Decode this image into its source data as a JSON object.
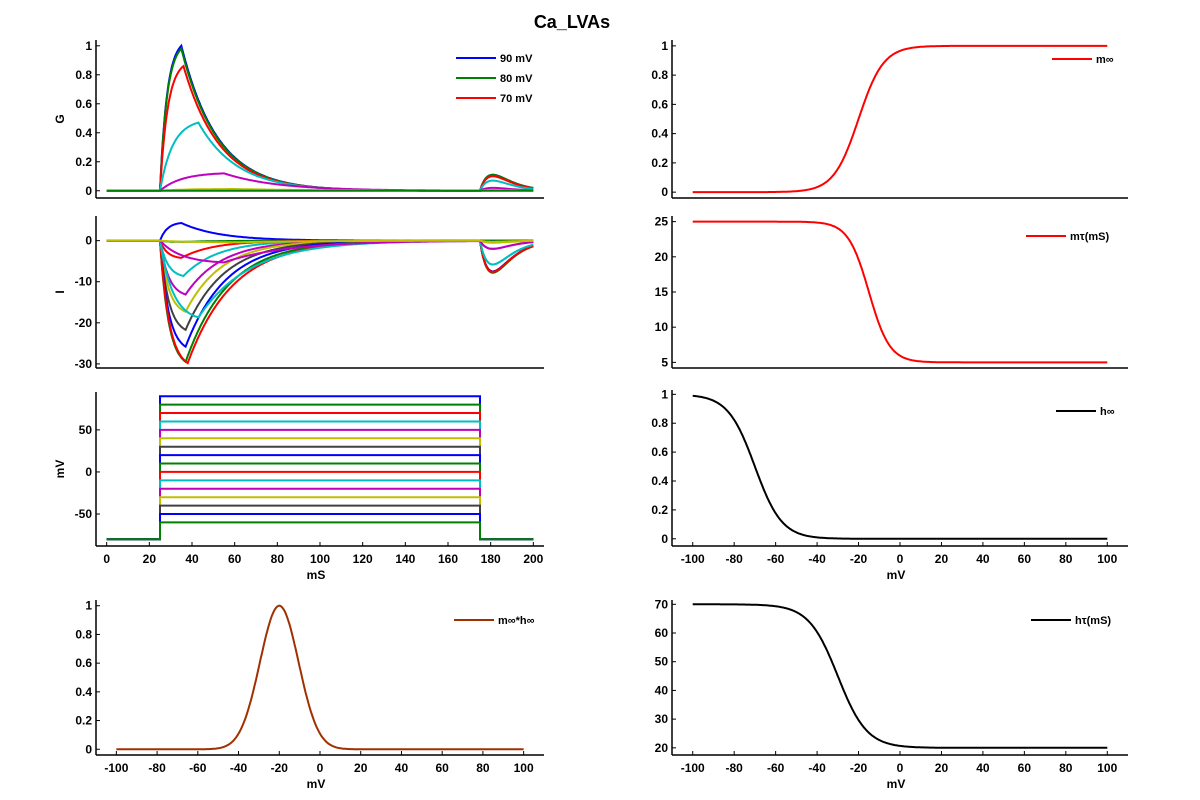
{
  "figure_title": "Ca_LVAs",
  "chart_data": [
    {
      "id": "conductance",
      "type": "line",
      "title": "",
      "xlabel": "",
      "ylabel": "G",
      "xlim": [
        -5,
        205
      ],
      "ylim": [
        -0.05,
        1.04
      ],
      "xticks": [],
      "yticks": [
        0,
        0.2,
        0.4,
        0.6,
        0.8,
        1
      ],
      "ytick_labels": [
        "0",
        "0.2",
        "0.4",
        "0.6",
        "0.8",
        "1"
      ],
      "legend": {
        "position": "top-right",
        "entries": [
          {
            "label": "90 mV",
            "color": "#0000ff"
          },
          {
            "label": "80 mV",
            "color": "#008000"
          },
          {
            "label": "70 mV",
            "color": "#ff0000"
          }
        ]
      },
      "series": [
        {
          "name": "90 mV",
          "color": "#0000ff",
          "peak": 1.0,
          "peak_t": 35,
          "decay": 17,
          "tail_peak": 0.11
        },
        {
          "name": "80 mV",
          "color": "#008000",
          "peak": 0.98,
          "peak_t": 35,
          "decay": 17,
          "tail_peak": 0.11
        },
        {
          "name": "70 mV",
          "color": "#ff0000",
          "peak": 0.86,
          "peak_t": 36,
          "decay": 17,
          "tail_peak": 0.1
        },
        {
          "name": "60 mV",
          "color": "#00bfbf",
          "peak": 0.47,
          "peak_t": 43,
          "decay": 18,
          "tail_peak": 0.07
        },
        {
          "name": "50 mV",
          "color": "#bf00bf",
          "peak": 0.12,
          "peak_t": 55,
          "decay": 25,
          "tail_peak": 0.02
        },
        {
          "name": "40 mV",
          "color": "#bfbf00",
          "peak": 0.012,
          "peak_t": 60,
          "decay": 40,
          "tail_peak": 0.005
        },
        {
          "name": "-80 mV",
          "color": "#008000",
          "peak": 0.0,
          "peak_t": 60,
          "decay": 40,
          "tail_peak": 0.0
        }
      ]
    },
    {
      "id": "current",
      "type": "line",
      "title": "",
      "xlabel": "",
      "ylabel": "I",
      "xlim": [
        -5,
        205
      ],
      "ylim": [
        -31,
        6
      ],
      "xticks": [],
      "yticks": [
        -30,
        -20,
        -10,
        0
      ],
      "ytick_labels": [
        "-30",
        "-20",
        "-10",
        "0"
      ],
      "series": [
        {
          "name": "90 mV",
          "color": "#0000ff",
          "peak": 4.3,
          "peak_t": 35,
          "decay": 18,
          "tail_peak": 0
        },
        {
          "name": "80 mV",
          "color": "#008000",
          "peak": -0.3,
          "peak_t": 36,
          "decay": 18,
          "tail_peak": -0.1
        },
        {
          "name": "70 mV",
          "color": "#ff0000",
          "peak": -4.2,
          "peak_t": 35,
          "decay": 15,
          "tail_peak": -7.5
        },
        {
          "name": "60 mV",
          "color": "#00bfbf",
          "peak": -8.6,
          "peak_t": 36,
          "decay": 16,
          "tail_peak": -5.8
        },
        {
          "name": "50 mV",
          "color": "#bf00bf",
          "peak": -13.1,
          "peak_t": 37,
          "decay": 17,
          "tail_peak": -2.0
        },
        {
          "name": "40 mV",
          "color": "#bfbf00",
          "peak": -17.3,
          "peak_t": 37,
          "decay": 17,
          "tail_peak": -0.5
        },
        {
          "name": "30 mV",
          "color": "#404040",
          "peak": -21.7,
          "peak_t": 37,
          "decay": 18,
          "tail_peak": -7.5
        },
        {
          "name": "20 mV",
          "color": "#0000ff",
          "peak": -25.8,
          "peak_t": 37,
          "decay": 19,
          "tail_peak": -7.5
        },
        {
          "name": "10 mV",
          "color": "#008000",
          "peak": -29.5,
          "peak_t": 37,
          "decay": 20,
          "tail_peak": -7.8
        },
        {
          "name": "0 mV",
          "color": "#ff0000",
          "peak": -29.8,
          "peak_t": 38,
          "decay": 21,
          "tail_peak": -7.6
        },
        {
          "name": "-10 mV",
          "color": "#00bfbf",
          "peak": -18.7,
          "peak_t": 43,
          "decay": 24,
          "tail_peak": -5.8
        },
        {
          "name": "-20 mV",
          "color": "#bf00bf",
          "peak": -5.3,
          "peak_t": 55,
          "decay": 30,
          "tail_peak": -2.0
        },
        {
          "name": "-30 mV",
          "color": "#bfbf00",
          "peak": -0.4,
          "peak_t": 60,
          "decay": 40,
          "tail_peak": -0.3
        }
      ]
    },
    {
      "id": "voltage-protocol",
      "type": "line",
      "title": "",
      "xlabel": "mS",
      "ylabel": "mV",
      "xlim": [
        -5,
        205
      ],
      "ylim": [
        -88,
        95
      ],
      "xticks": [
        0,
        20,
        40,
        60,
        80,
        100,
        120,
        140,
        160,
        180,
        200
      ],
      "xtick_labels": [
        "0",
        "20",
        "40",
        "60",
        "80",
        "100",
        "120",
        "140",
        "160",
        "180",
        "200"
      ],
      "yticks": [
        -50,
        0,
        50
      ],
      "ytick_labels": [
        "-50",
        "0",
        "50"
      ],
      "holding_mV": -80,
      "step_on_ms": 25,
      "step_off_ms": 175,
      "duration_ms": 200,
      "series": [
        {
          "name": "90 mV",
          "color": "#0000ff",
          "step": 90
        },
        {
          "name": "80 mV",
          "color": "#008000",
          "step": 80
        },
        {
          "name": "70 mV",
          "color": "#ff0000",
          "step": 70
        },
        {
          "name": "60 mV",
          "color": "#00bfbf",
          "step": 60
        },
        {
          "name": "50 mV",
          "color": "#bf00bf",
          "step": 50
        },
        {
          "name": "40 mV",
          "color": "#bfbf00",
          "step": 40
        },
        {
          "name": "30 mV",
          "color": "#404040",
          "step": 30
        },
        {
          "name": "20 mV",
          "color": "#0000ff",
          "step": 20
        },
        {
          "name": "10 mV",
          "color": "#008000",
          "step": 10
        },
        {
          "name": "0 mV",
          "color": "#ff0000",
          "step": 0
        },
        {
          "name": "-10 mV",
          "color": "#00bfbf",
          "step": -10
        },
        {
          "name": "-20 mV",
          "color": "#bf00bf",
          "step": -20
        },
        {
          "name": "-30 mV",
          "color": "#bfbf00",
          "step": -30
        },
        {
          "name": "-40 mV",
          "color": "#404040",
          "step": -40
        },
        {
          "name": "-50 mV",
          "color": "#0000ff",
          "step": -50
        },
        {
          "name": "-60 mV",
          "color": "#008000",
          "step": -60
        }
      ]
    },
    {
      "id": "window-current",
      "type": "line",
      "title": "",
      "xlabel": "mV",
      "ylabel": "",
      "xlim": [
        -110,
        110
      ],
      "ylim": [
        -0.04,
        1.04
      ],
      "xticks": [
        -100,
        -80,
        -60,
        -40,
        -20,
        0,
        20,
        40,
        60,
        80,
        100
      ],
      "xtick_labels": [
        "-100",
        "-80",
        "-60",
        "-40",
        "-20",
        "0",
        "20",
        "40",
        "60",
        "80",
        "100"
      ],
      "yticks": [
        0,
        0.2,
        0.4,
        0.6,
        0.8,
        1
      ],
      "ytick_labels": [
        "0",
        "0.2",
        "0.4",
        "0.6",
        "0.8",
        "1"
      ],
      "legend": {
        "position": "top-right",
        "entries": [
          {
            "label": "m∞*h∞",
            "color": "#a03000"
          }
        ]
      },
      "series": [
        {
          "name": "m∞*h∞",
          "color": "#a03000",
          "kind": "gaussian",
          "center": -20,
          "width": 9.5,
          "amplitude": 1.0
        }
      ]
    },
    {
      "id": "m-inf",
      "type": "line",
      "title": "",
      "xlabel": "",
      "ylabel": "",
      "xlim": [
        -110,
        110
      ],
      "ylim": [
        -0.04,
        1.04
      ],
      "xticks": [],
      "yticks": [
        0,
        0.2,
        0.4,
        0.6,
        0.8,
        1
      ],
      "ytick_labels": [
        "0",
        "0.2",
        "0.4",
        "0.6",
        "0.8",
        "1"
      ],
      "legend": {
        "position": "top-right",
        "entries": [
          {
            "label": "m∞",
            "color": "#ff0000"
          }
        ]
      },
      "series": [
        {
          "name": "m∞",
          "color": "#ff0000",
          "kind": "sigmoid",
          "v_half": -20,
          "slope": 6,
          "low": 0,
          "high": 1,
          "rising": true
        }
      ]
    },
    {
      "id": "m-tau",
      "type": "line",
      "title": "",
      "xlabel": "",
      "ylabel": "",
      "xlim": [
        -110,
        110
      ],
      "ylim": [
        4.2,
        25.8
      ],
      "xticks": [],
      "yticks": [
        5,
        10,
        15,
        20,
        25
      ],
      "ytick_labels": [
        "5",
        "10",
        "15",
        "20",
        "25"
      ],
      "legend": {
        "position": "top-right",
        "entries": [
          {
            "label": "mτ(mS)",
            "color": "#ff0000"
          }
        ]
      },
      "series": [
        {
          "name": "mτ(mS)",
          "color": "#ff0000",
          "kind": "sigmoid",
          "v_half": -15,
          "slope": 5,
          "low": 5,
          "high": 25,
          "rising": false
        }
      ]
    },
    {
      "id": "h-inf",
      "type": "line",
      "title": "",
      "xlabel": "mV",
      "ylabel": "",
      "xlim": [
        -110,
        110
      ],
      "ylim": [
        -0.05,
        1.03
      ],
      "xticks": [
        -100,
        -80,
        -60,
        -40,
        -20,
        0,
        20,
        40,
        60,
        80,
        100
      ],
      "xtick_labels": [
        "-100",
        "-80",
        "-60",
        "-40",
        "-20",
        "0",
        "20",
        "40",
        "60",
        "80",
        "100"
      ],
      "yticks": [
        0,
        0.2,
        0.4,
        0.6,
        0.8,
        1
      ],
      "ytick_labels": [
        "0",
        "0.2",
        "0.4",
        "0.6",
        "0.8",
        "1"
      ],
      "legend": {
        "position": "top-right",
        "entries": [
          {
            "label": "h∞",
            "color": "#000000"
          }
        ]
      },
      "series": [
        {
          "name": "h∞",
          "color": "#000000",
          "kind": "sigmoid",
          "v_half": -70,
          "slope": 6.5,
          "low": 0,
          "high": 1,
          "rising": false
        }
      ]
    },
    {
      "id": "h-tau",
      "type": "line",
      "title": "",
      "xlabel": "mV",
      "ylabel": "",
      "xlim": [
        -110,
        110
      ],
      "ylim": [
        17.5,
        71.5
      ],
      "xticks": [
        -100,
        -80,
        -60,
        -40,
        -20,
        0,
        20,
        40,
        60,
        80,
        100
      ],
      "xtick_labels": [
        "-100",
        "-80",
        "-60",
        "-40",
        "-20",
        "0",
        "20",
        "40",
        "60",
        "80",
        "100"
      ],
      "yticks": [
        20,
        30,
        40,
        50,
        60,
        70
      ],
      "ytick_labels": [
        "20",
        "30",
        "40",
        "50",
        "60",
        "70"
      ],
      "legend": {
        "position": "top-right",
        "entries": [
          {
            "label": "hτ(mS)",
            "color": "#000000"
          }
        ]
      },
      "series": [
        {
          "name": "hτ(mS)",
          "color": "#000000",
          "kind": "sigmoid",
          "v_half": -30,
          "slope": 7,
          "low": 20,
          "high": 70,
          "rising": false
        }
      ]
    }
  ]
}
